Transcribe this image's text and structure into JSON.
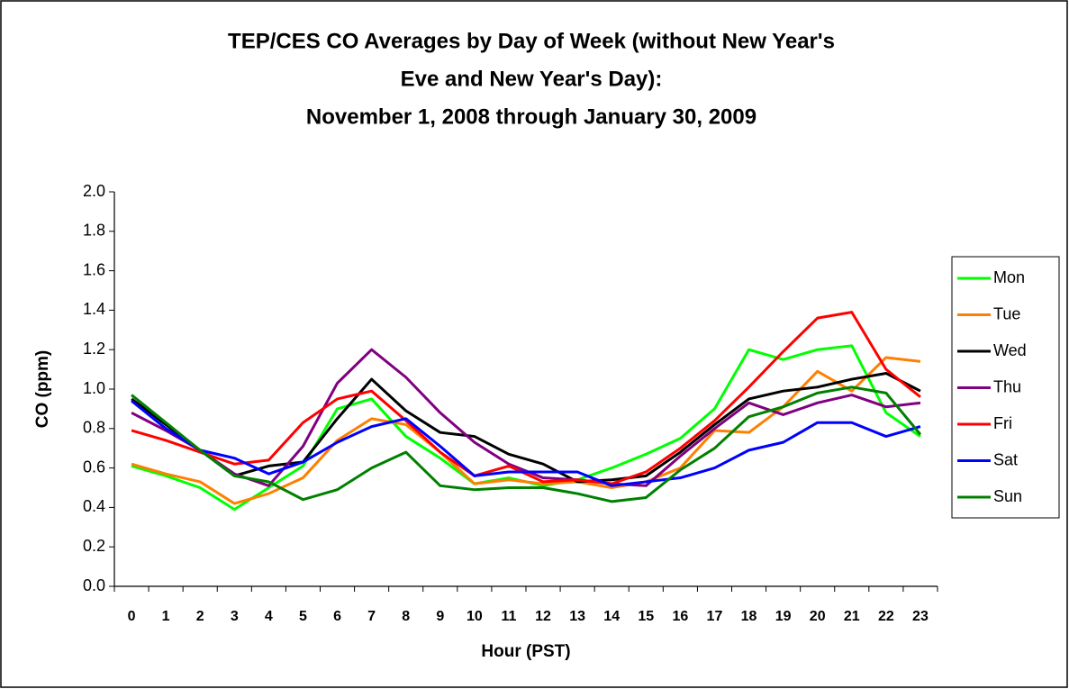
{
  "chart_data": {
    "type": "line",
    "title": [
      "TEP/CES CO Averages by Day of Week (without New Year's",
      "Eve and New Year's Day):",
      "November 1, 2008 through January 30, 2009"
    ],
    "x_label": "Hour (PST)",
    "y_label": "CO (ppm)",
    "categories": [
      "0",
      "1",
      "2",
      "3",
      "4",
      "5",
      "6",
      "7",
      "8",
      "9",
      "10",
      "11",
      "12",
      "13",
      "14",
      "15",
      "16",
      "17",
      "18",
      "19",
      "20",
      "21",
      "22",
      "23"
    ],
    "ylim": [
      0,
      2
    ],
    "yticks": [
      {
        "value": 0,
        "label": "0.0"
      },
      {
        "value": 0.2,
        "label": "0.2"
      },
      {
        "value": 0.4,
        "label": "0.4"
      },
      {
        "value": 0.6,
        "label": "0.6"
      },
      {
        "value": 0.8,
        "label": "0.8"
      },
      {
        "value": 1,
        "label": "1.0"
      },
      {
        "value": 1.2,
        "label": "1.2"
      },
      {
        "value": 1.4,
        "label": "1.4"
      },
      {
        "value": 1.6,
        "label": "1.6"
      },
      {
        "value": 1.8,
        "label": "1.8"
      },
      {
        "value": 2,
        "label": "2.0"
      }
    ],
    "grid": false,
    "legend": "right",
    "series": [
      {
        "name": "Mon",
        "color": "#00ff00",
        "values": [
          0.61,
          0.56,
          0.5,
          0.39,
          0.5,
          0.61,
          0.9,
          0.95,
          0.76,
          0.65,
          0.52,
          0.55,
          0.51,
          0.54,
          0.6,
          0.67,
          0.75,
          0.9,
          1.2,
          1.15,
          1.2,
          1.22,
          0.88,
          0.76
        ]
      },
      {
        "name": "Tue",
        "color": "#ff7f00",
        "values": [
          0.62,
          0.57,
          0.53,
          0.42,
          0.47,
          0.55,
          0.74,
          0.85,
          0.82,
          0.68,
          0.52,
          0.54,
          0.52,
          0.53,
          0.5,
          0.53,
          0.6,
          0.79,
          0.78,
          0.91,
          1.09,
          0.99,
          1.16,
          1.14
        ]
      },
      {
        "name": "Wed",
        "color": "#000000",
        "values": [
          0.95,
          0.82,
          0.69,
          0.56,
          0.61,
          0.63,
          0.85,
          1.05,
          0.89,
          0.78,
          0.76,
          0.67,
          0.62,
          0.53,
          0.54,
          0.56,
          0.68,
          0.82,
          0.95,
          0.99,
          1.01,
          1.05,
          1.08,
          0.99
        ]
      },
      {
        "name": "Thu",
        "color": "#800080",
        "values": [
          0.88,
          0.79,
          0.69,
          0.57,
          0.51,
          0.71,
          1.03,
          1.2,
          1.06,
          0.88,
          0.73,
          0.62,
          0.55,
          0.54,
          0.52,
          0.51,
          0.66,
          0.8,
          0.93,
          0.87,
          0.93,
          0.97,
          0.91,
          0.93
        ]
      },
      {
        "name": "Fri",
        "color": "#ff0000",
        "values": [
          0.79,
          0.74,
          0.68,
          0.62,
          0.64,
          0.83,
          0.95,
          0.99,
          0.84,
          0.68,
          0.56,
          0.61,
          0.53,
          0.54,
          0.52,
          0.58,
          0.7,
          0.84,
          1.01,
          1.19,
          1.36,
          1.39,
          1.1,
          0.96
        ]
      },
      {
        "name": "Sat",
        "color": "#0000ff",
        "values": [
          0.94,
          0.8,
          0.69,
          0.65,
          0.57,
          0.63,
          0.73,
          0.81,
          0.85,
          0.71,
          0.56,
          0.58,
          0.58,
          0.58,
          0.51,
          0.53,
          0.55,
          0.6,
          0.69,
          0.73,
          0.83,
          0.83,
          0.76,
          0.81
        ]
      },
      {
        "name": "Sun",
        "color": "#008000",
        "values": [
          0.97,
          0.83,
          0.69,
          0.56,
          0.53,
          0.44,
          0.49,
          0.6,
          0.68,
          0.51,
          0.49,
          0.5,
          0.5,
          0.47,
          0.43,
          0.45,
          0.59,
          0.7,
          0.86,
          0.91,
          0.98,
          1.01,
          0.98,
          0.77
        ]
      }
    ]
  }
}
